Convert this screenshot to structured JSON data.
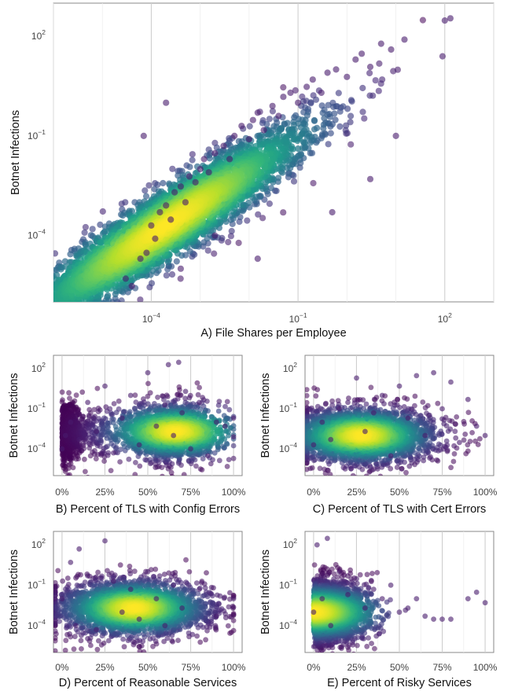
{
  "chart_data": [
    {
      "id": "A",
      "type": "scatter",
      "title": "",
      "xlabel": "A) File Shares per Employee",
      "ylabel": "Botnet Infections",
      "x_scale": "log10",
      "y_scale": "log10",
      "xlim": [
        1e-06,
        1000
      ],
      "ylim": [
        1e-06,
        1000
      ],
      "x_ticks": [
        {
          "label": "10",
          "exp": "−4",
          "value": 0.0001
        },
        {
          "label": "10",
          "exp": "−1",
          "value": 0.1
        },
        {
          "label": "10",
          "exp": "2",
          "value": 100
        }
      ],
      "y_ticks": [
        {
          "label": "10",
          "exp": "−4",
          "value": 0.0001
        },
        {
          "label": "10",
          "exp": "−1",
          "value": 0.1
        },
        {
          "label": "10",
          "exp": "2",
          "value": 100
        }
      ],
      "grid": true,
      "points": [
        [
          3e-05,
          5e-06
        ],
        [
          4e-05,
          3e-06
        ],
        [
          6e-05,
          2e-05
        ],
        [
          8e-05,
          3e-05
        ],
        [
          0.0001,
          0.0002
        ],
        [
          0.00012,
          8e-05
        ],
        [
          0.00015,
          0.0005
        ],
        [
          0.0002,
          0.0008
        ],
        [
          0.00025,
          0.0003
        ],
        [
          0.0003,
          0.002
        ],
        [
          0.0004,
          0.003
        ],
        [
          0.0005,
          0.001
        ],
        [
          0.0006,
          0.006
        ],
        [
          0.0008,
          0.004
        ],
        [
          0.001,
          0.01
        ],
        [
          0.0012,
          0.02
        ],
        [
          0.0015,
          0.008
        ],
        [
          0.002,
          0.03
        ],
        [
          0.003,
          0.05
        ],
        [
          0.004,
          0.02
        ],
        [
          0.005,
          0.1
        ],
        [
          0.007,
          0.2
        ],
        [
          0.01,
          0.08
        ],
        [
          0.012,
          0.3
        ],
        [
          0.015,
          0.5
        ],
        [
          0.02,
          0.15
        ],
        [
          0.03,
          0.8
        ],
        [
          0.04,
          0.4
        ],
        [
          0.05,
          1.5
        ],
        [
          0.07,
          2
        ],
        [
          0.1,
          1
        ],
        [
          0.15,
          3
        ],
        [
          0.2,
          5
        ],
        [
          0.3,
          2
        ],
        [
          0.4,
          8
        ],
        [
          0.6,
          10
        ],
        [
          1,
          6
        ],
        [
          1.5,
          20
        ],
        [
          2,
          30
        ],
        [
          3,
          12
        ],
        [
          5,
          60
        ],
        [
          8,
          40
        ],
        [
          15,
          80
        ],
        [
          90,
          25
        ],
        [
          100,
          300
        ],
        [
          130,
          350
        ],
        [
          0.0002,
          1
        ],
        [
          7e-05,
          0.1
        ],
        [
          0.002,
          0.0001
        ],
        [
          0.0004,
          1e-05
        ],
        [
          3,
          0.005
        ],
        [
          10,
          0.1
        ],
        [
          0.5,
          0.0005
        ],
        [
          0.015,
          2e-05
        ]
      ],
      "density_center": [
        0.0002,
        0.0002
      ]
    },
    {
      "id": "B",
      "type": "scatter",
      "title": "",
      "xlabel": "B) Percent of TLS with Config Errors",
      "ylabel": "Botnet Infections",
      "y_scale": "log10",
      "xlim": [
        -0.05,
        1.05
      ],
      "ylim": [
        1e-06,
        1000
      ],
      "x_ticks": [
        "0%",
        "25%",
        "50%",
        "75%",
        "100%"
      ],
      "y_ticks": [
        {
          "label": "10",
          "exp": "2",
          "value": 100
        },
        {
          "label": "10",
          "exp": "−1",
          "value": 0.1
        },
        {
          "label": "10",
          "exp": "−4",
          "value": 0.0001
        }
      ],
      "grid": true,
      "points": [
        [
          0.0,
          0.0001
        ],
        [
          0.02,
          0.001
        ],
        [
          0.05,
          0.01
        ],
        [
          0.1,
          0.0005
        ],
        [
          0.15,
          0.3
        ],
        [
          0.2,
          0.002
        ],
        [
          0.25,
          5
        ],
        [
          0.3,
          5e-05
        ],
        [
          0.35,
          0.02
        ],
        [
          0.4,
          1
        ],
        [
          0.45,
          0.0002
        ],
        [
          0.5,
          50
        ],
        [
          0.55,
          0.005
        ],
        [
          0.6,
          0.2
        ],
        [
          0.62,
          200
        ],
        [
          0.65,
          0.001
        ],
        [
          0.68,
          300
        ],
        [
          0.7,
          0.05
        ],
        [
          0.72,
          2
        ],
        [
          0.75,
          0.0001
        ],
        [
          0.8,
          0.3
        ],
        [
          0.85,
          3e-05
        ],
        [
          0.9,
          0.01
        ],
        [
          0.95,
          0.005
        ],
        [
          1.0,
          0.0008
        ],
        [
          1.0,
          0.02
        ]
      ],
      "density_center": [
        0.66,
        0.002
      ]
    },
    {
      "id": "C",
      "type": "scatter",
      "title": "",
      "xlabel": "C) Percent of TLS with Cert Errors",
      "ylabel": "Botnet Infections",
      "y_scale": "log10",
      "xlim": [
        -0.05,
        1.05
      ],
      "ylim": [
        1e-06,
        1000
      ],
      "x_ticks": [
        "0%",
        "25%",
        "50%",
        "75%",
        "100%"
      ],
      "y_ticks": [
        {
          "label": "10",
          "exp": "2",
          "value": 100
        },
        {
          "label": "10",
          "exp": "−1",
          "value": 0.1
        },
        {
          "label": "10",
          "exp": "−4",
          "value": 0.0001
        }
      ],
      "grid": true,
      "points": [
        [
          0.0,
          0.0002
        ],
        [
          0.05,
          0.01
        ],
        [
          0.1,
          0.0005
        ],
        [
          0.15,
          0.1
        ],
        [
          0.2,
          0.3
        ],
        [
          0.25,
          20
        ],
        [
          0.3,
          0.002
        ],
        [
          0.35,
          0.05
        ],
        [
          0.4,
          1
        ],
        [
          0.45,
          3e-05
        ],
        [
          0.5,
          5
        ],
        [
          0.55,
          0.02
        ],
        [
          0.6,
          30
        ],
        [
          0.65,
          0.001
        ],
        [
          0.7,
          50
        ],
        [
          0.75,
          0.1
        ],
        [
          0.8,
          10
        ],
        [
          0.85,
          0.0003
        ],
        [
          0.9,
          0.5
        ],
        [
          0.95,
          0.005
        ],
        [
          1.0,
          0.001
        ]
      ],
      "density_center": [
        0.28,
        0.001
      ]
    },
    {
      "id": "D",
      "type": "scatter",
      "title": "",
      "xlabel": "D) Percent of Reasonable Services",
      "ylabel": "Botnet Infections",
      "y_scale": "log10",
      "xlim": [
        -0.05,
        1.05
      ],
      "ylim": [
        1e-06,
        1000
      ],
      "x_ticks": [
        "0%",
        "25%",
        "50%",
        "75%",
        "100%"
      ],
      "y_ticks": [
        {
          "label": "10",
          "exp": "2",
          "value": 100
        },
        {
          "label": "10",
          "exp": "−1",
          "value": 0.1
        },
        {
          "label": "10",
          "exp": "−4",
          "value": 0.0001
        }
      ],
      "grid": true,
      "points": [
        [
          0.0,
          0.01
        ],
        [
          0.05,
          5
        ],
        [
          0.08,
          0.0001
        ],
        [
          0.1,
          50
        ],
        [
          0.15,
          0.5
        ],
        [
          0.2,
          5e-05
        ],
        [
          0.25,
          200
        ],
        [
          0.3,
          0.2
        ],
        [
          0.35,
          0.001
        ],
        [
          0.4,
          0.05
        ],
        [
          0.45,
          0.0003
        ],
        [
          0.5,
          1
        ],
        [
          0.55,
          0.01
        ],
        [
          0.6,
          0.0001
        ],
        [
          0.65,
          0.1
        ],
        [
          0.7,
          0.002
        ],
        [
          0.8,
          0.05
        ],
        [
          0.9,
          0.0005
        ],
        [
          1.0,
          0.01
        ]
      ],
      "density_center": [
        0.42,
        0.002
      ]
    },
    {
      "id": "E",
      "type": "scatter",
      "title": "",
      "xlabel": "E) Percent of Risky Services",
      "ylabel": "Botnet Infections",
      "y_scale": "log10",
      "xlim": [
        -0.05,
        1.05
      ],
      "ylim": [
        1e-06,
        1000
      ],
      "x_ticks": [
        "0%",
        "25%",
        "50%",
        "75%",
        "100%"
      ],
      "y_ticks": [
        {
          "label": "10",
          "exp": "2",
          "value": 100
        },
        {
          "label": "10",
          "exp": "−1",
          "value": 0.1
        },
        {
          "label": "10",
          "exp": "−4",
          "value": 0.0001
        }
      ],
      "grid": true,
      "points": [
        [
          0.0,
          0.001
        ],
        [
          0.02,
          100
        ],
        [
          0.05,
          0.01
        ],
        [
          0.08,
          300
        ],
        [
          0.1,
          0.0001
        ],
        [
          0.15,
          1
        ],
        [
          0.2,
          0.02
        ],
        [
          0.25,
          0.3
        ],
        [
          0.3,
          0.002
        ],
        [
          0.35,
          0.05
        ],
        [
          0.4,
          0.01
        ],
        [
          0.45,
          0.1
        ],
        [
          0.5,
          0.001
        ],
        [
          0.55,
          0.002
        ],
        [
          0.6,
          0.01
        ],
        [
          0.65,
          0.0005
        ],
        [
          0.7,
          0.0003
        ],
        [
          0.75,
          0.0003
        ],
        [
          0.8,
          0.0003
        ],
        [
          0.9,
          0.01
        ],
        [
          0.95,
          0.03
        ],
        [
          1.0,
          0.005
        ]
      ],
      "density_center": [
        0.0,
        0.001
      ]
    }
  ]
}
